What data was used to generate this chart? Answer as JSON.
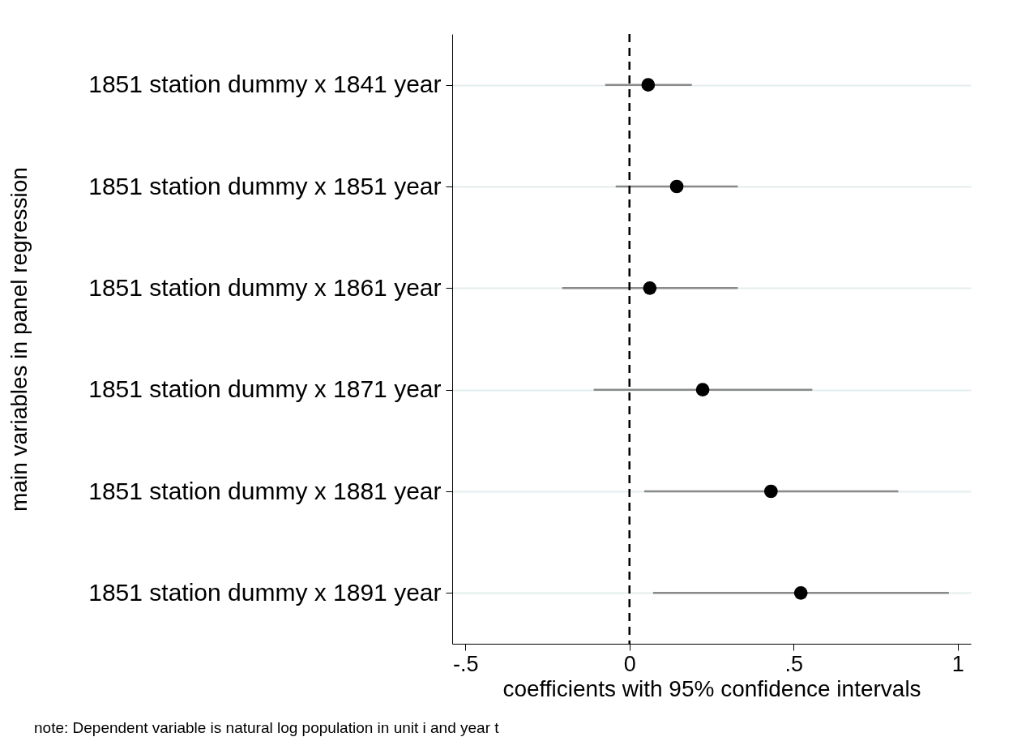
{
  "chart_data": {
    "type": "scatter",
    "orientation": "horizontal",
    "xlabel": "coefficients with 95% confidence intervals",
    "ylabel": "main variables in panel regression",
    "categories": [
      "1851 station dummy x 1841 year",
      "1851 station dummy x 1851 year",
      "1851 station dummy x 1861 year",
      "1851 station dummy x 1871 year",
      "1851 station dummy x 1881 year",
      "1851 station dummy x 1891 year"
    ],
    "values": [
      0.057,
      0.144,
      0.062,
      0.223,
      0.431,
      0.522
    ],
    "errors": [
      [
        -0.074,
        0.19
      ],
      [
        -0.042,
        0.33
      ],
      [
        -0.205,
        0.33
      ],
      [
        -0.109,
        0.557
      ],
      [
        0.045,
        0.819
      ],
      [
        0.072,
        0.973
      ]
    ],
    "color": "#000000",
    "marker": "circle",
    "grid": "y",
    "xlim": [
      -0.54,
      1.04
    ],
    "xticks": [
      {
        "value": -0.5,
        "label": "-.5"
      },
      0,
      {
        "value": 0.5,
        "label": ".5"
      },
      1
    ],
    "ref_lines": [
      {
        "axis": "x",
        "value": 0,
        "line_style": "dashed",
        "color": "#000000"
      }
    ],
    "annotations": [
      "note: Dependent variable is natural log population in unit i and year t"
    ]
  }
}
